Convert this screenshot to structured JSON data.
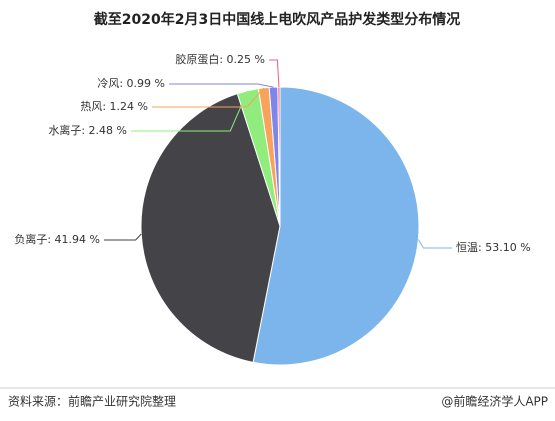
{
  "chart_data": {
    "type": "pie",
    "title": "截至2020年2月3日中国线上电吹风产品护发类型分布情况",
    "categories": [
      "恒温",
      "负离子",
      "水离子",
      "热风",
      "冷风",
      "胶原蛋白"
    ],
    "values": [
      53.1,
      41.94,
      2.48,
      1.24,
      0.99,
      0.25
    ],
    "value_labels": [
      "53.10 %",
      "41.94 %",
      "2.48 %",
      "1.24 %",
      "0.99 %",
      "0.25 %"
    ],
    "colors": [
      "#7cb5ec",
      "#434348",
      "#90ed7d",
      "#f7a35c",
      "#8085e9",
      "#f15c80"
    ],
    "source": "资料来源：前瞻产业研究院整理",
    "credit": "@前瞻经济学人APP"
  }
}
